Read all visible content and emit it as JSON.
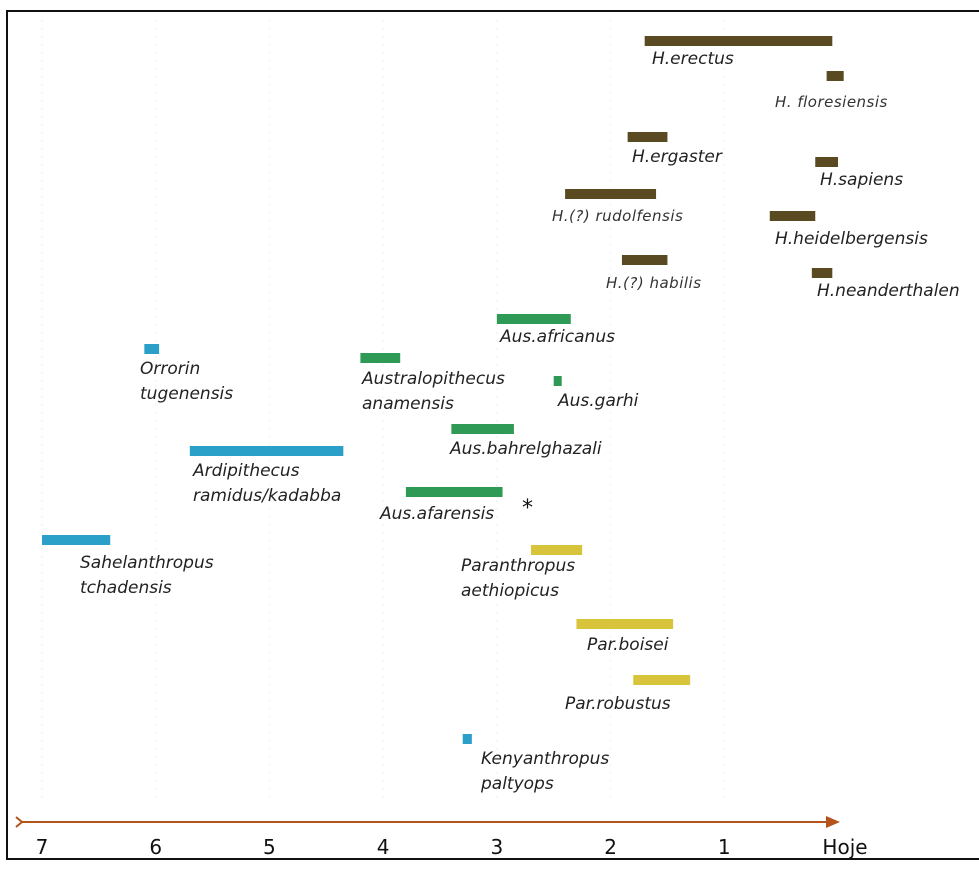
{
  "chart_data": {
    "type": "timeline",
    "title": "",
    "xlabel": "",
    "ylabel": "",
    "x_axis": {
      "direction": "reversed",
      "ticks": [
        "7",
        "6",
        "5",
        "4",
        "3",
        "2",
        "1",
        "Hoje"
      ],
      "tick_values": [
        7,
        6,
        5,
        4,
        3,
        2,
        1,
        0
      ],
      "range": [
        7,
        0
      ]
    },
    "grid": false,
    "colors": {
      "homo": "#5a4a22",
      "australopithecus": "#2e9a55",
      "paranthropus": "#d8c43a",
      "early": "#2aa0c8",
      "axis": "#b5531c"
    },
    "species": [
      {
        "lines": [
          "H.erectus"
        ],
        "start": 1.7,
        "end": 0.05,
        "group": "homo",
        "small": false
      },
      {
        "lines": [
          "H. floresiensis"
        ],
        "start": 0.1,
        "end": -0.05,
        "group": "homo",
        "small": true
      },
      {
        "lines": [
          "H.ergaster"
        ],
        "start": 1.85,
        "end": 1.5,
        "group": "homo",
        "small": false
      },
      {
        "lines": [
          "H.sapiens"
        ],
        "start": 0.2,
        "end": 0.0,
        "group": "homo",
        "small": false
      },
      {
        "lines": [
          "H.(?) rudolfensis"
        ],
        "start": 2.4,
        "end": 1.6,
        "group": "homo",
        "small": true
      },
      {
        "lines": [
          "H.heidelbergensis"
        ],
        "start": 0.6,
        "end": 0.2,
        "group": "homo",
        "small": false
      },
      {
        "lines": [
          "H.(?) habilis"
        ],
        "start": 1.9,
        "end": 1.5,
        "group": "homo",
        "small": true
      },
      {
        "lines": [
          "H.neanderthalen"
        ],
        "start": 0.23,
        "end": 0.05,
        "group": "homo",
        "small": false
      },
      {
        "lines": [
          "Aus.africanus"
        ],
        "start": 3.0,
        "end": 2.35,
        "group": "australopithecus",
        "small": false
      },
      {
        "lines": [
          "Orrorin",
          "tugenensis"
        ],
        "start": 6.1,
        "end": 5.97,
        "group": "early",
        "small": false
      },
      {
        "lines": [
          "Australopithecus",
          "anamensis"
        ],
        "start": 4.2,
        "end": 3.85,
        "group": "australopithecus",
        "small": false
      },
      {
        "lines": [
          "Aus.garhi"
        ],
        "start": 2.5,
        "end": 2.44,
        "group": "australopithecus",
        "small": false
      },
      {
        "lines": [
          "Aus.bahrelghazali"
        ],
        "start": 3.4,
        "end": 2.85,
        "group": "australopithecus",
        "small": false
      },
      {
        "lines": [
          "Ardipithecus",
          "ramidus/kadabba"
        ],
        "start": 5.7,
        "end": 4.35,
        "group": "early",
        "small": false
      },
      {
        "lines": [
          "Aus.afarensis"
        ],
        "start": 3.8,
        "end": 2.95,
        "group": "australopithecus",
        "small": false
      },
      {
        "lines": [
          "Sahelanthropus",
          "tchadensis"
        ],
        "start": 7.0,
        "end": 6.4,
        "group": "early",
        "small": false
      },
      {
        "lines": [
          "Paranthropus",
          "aethiopicus"
        ],
        "start": 2.7,
        "end": 2.25,
        "group": "paranthropus",
        "small": false
      },
      {
        "lines": [
          "Par.boisei"
        ],
        "start": 2.3,
        "end": 1.45,
        "group": "paranthropus",
        "small": false
      },
      {
        "lines": [
          "Par.robustus"
        ],
        "start": 1.8,
        "end": 1.3,
        "group": "paranthropus",
        "small": false
      },
      {
        "lines": [
          "Kenyanthropus",
          "paltyops"
        ],
        "start": 3.3,
        "end": 3.22,
        "group": "early",
        "small": false
      }
    ],
    "annotations": [
      {
        "text": "*",
        "near": "Aus.afarensis"
      }
    ]
  }
}
